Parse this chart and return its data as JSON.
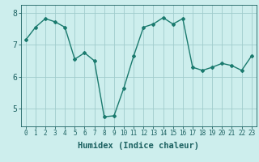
{
  "x": [
    0,
    1,
    2,
    3,
    4,
    5,
    6,
    7,
    8,
    9,
    10,
    11,
    12,
    13,
    14,
    15,
    16,
    17,
    18,
    19,
    20,
    21,
    22,
    23
  ],
  "y": [
    7.15,
    7.55,
    7.82,
    7.72,
    7.55,
    6.55,
    6.75,
    6.5,
    4.75,
    4.78,
    5.65,
    6.65,
    7.55,
    7.65,
    7.85,
    7.65,
    7.82,
    6.3,
    6.2,
    6.3,
    6.42,
    6.35,
    6.2,
    6.65
  ],
  "line_color": "#1a7a6e",
  "bg_color": "#cdeeed",
  "grid_color": "#a0cccc",
  "xlabel": "Humidex (Indice chaleur)",
  "xlim": [
    -0.5,
    23.5
  ],
  "ylim": [
    4.45,
    8.25
  ],
  "yticks": [
    5,
    6,
    7,
    8
  ],
  "xtick_labels": [
    "0",
    "1",
    "2",
    "3",
    "4",
    "5",
    "6",
    "7",
    "8",
    "9",
    "10",
    "11",
    "12",
    "13",
    "14",
    "15",
    "16",
    "17",
    "18",
    "19",
    "20",
    "21",
    "22",
    "23"
  ],
  "marker": "D",
  "markersize": 2.0,
  "linewidth": 1.0,
  "font_color": "#1a6060",
  "fontsize_xlabel": 7.5,
  "fontsize_ticks_x": 5.5,
  "fontsize_ticks_y": 7
}
